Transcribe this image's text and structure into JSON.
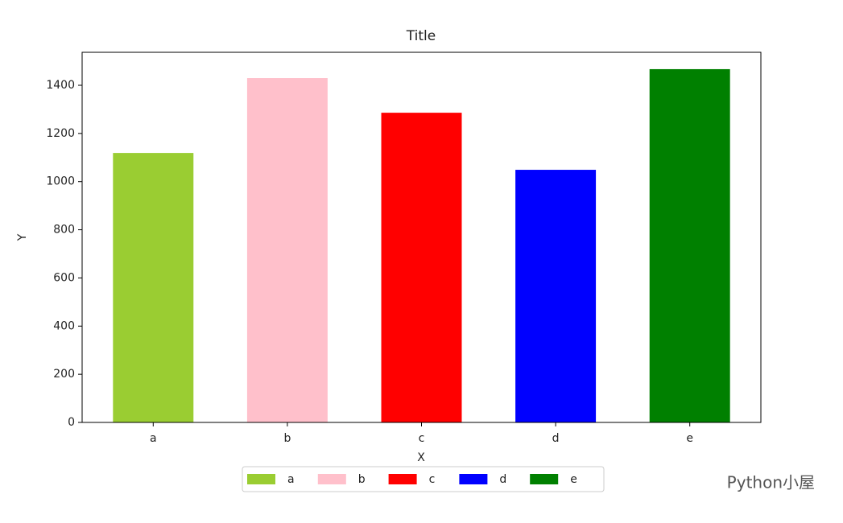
{
  "chart_data": {
    "type": "bar",
    "title": "Title",
    "x_label": "X",
    "y_label": "Y",
    "categories": [
      "a",
      "b",
      "c",
      "d",
      "e"
    ],
    "values": [
      1119,
      1430,
      1286,
      1049,
      1467
    ],
    "colors": [
      "#9acd32",
      "#ffc0cb",
      "#ff0000",
      "#0000ff",
      "#008000"
    ],
    "ylim": [
      0,
      1537
    ],
    "yticks": [
      0,
      200,
      400,
      600,
      800,
      1000,
      1200,
      1400
    ],
    "grid": false,
    "legend": "below",
    "watermark": "Python小屋"
  }
}
